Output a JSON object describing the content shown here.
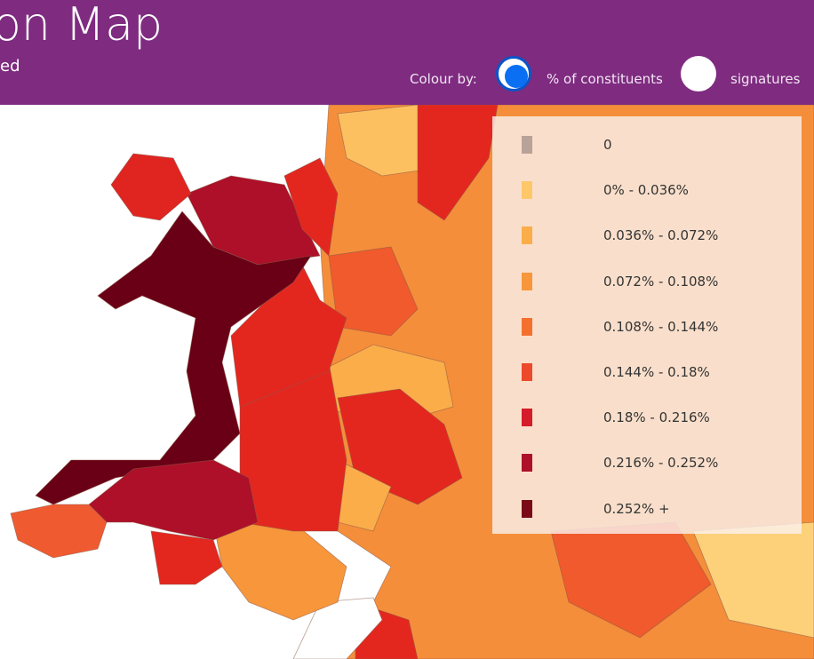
{
  "header": {
    "title": "on Map",
    "subtitle": "ed"
  },
  "controls": {
    "label": "Colour by:",
    "options": [
      {
        "label": "% of constituents",
        "selected": true
      },
      {
        "label": "signatures",
        "selected": false
      }
    ]
  },
  "legend": {
    "items": [
      {
        "label": "0",
        "color": "#b9a298"
      },
      {
        "label": "0% - 0.036%",
        "color": "#fdc76a"
      },
      {
        "label": "0.036% - 0.072%",
        "color": "#fbad4a"
      },
      {
        "label": "0.072% - 0.108%",
        "color": "#f7963a"
      },
      {
        "label": "0.108% - 0.144%",
        "color": "#f4702f"
      },
      {
        "label": "0.144% - 0.18%",
        "color": "#ec4a2a"
      },
      {
        "label": "0.18% - 0.216%",
        "color": "#d41c2a"
      },
      {
        "label": "0.216% - 0.252%",
        "color": "#ad1028"
      },
      {
        "label": "0.252% +",
        "color": "#7a0a18"
      }
    ]
  }
}
